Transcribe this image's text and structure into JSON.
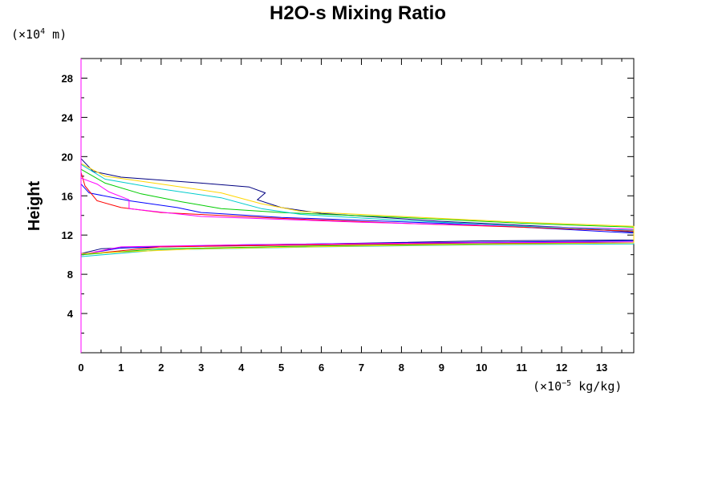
{
  "chart_data": {
    "type": "line",
    "title": "H2O-s Mixing Ratio",
    "xlabel": "",
    "ylabel": "Height",
    "x_unit": {
      "prefix": "(×10",
      "exp": "−5",
      "suffix": " kg/kg)"
    },
    "y_unit": {
      "prefix": "(×10",
      "exp": "4",
      "suffix": " m)"
    },
    "xlim": [
      0,
      13.8
    ],
    "ylim": [
      0,
      30
    ],
    "x_ticks": [
      0,
      1,
      2,
      3,
      4,
      5,
      6,
      7,
      8,
      9,
      10,
      11,
      12,
      13
    ],
    "x_tick_labels": [
      "0",
      "1",
      "2",
      "3",
      "4",
      "5",
      "6",
      "7",
      "8",
      "9",
      "10",
      "11",
      "12",
      "13"
    ],
    "y_ticks": [
      4,
      8,
      12,
      16,
      20,
      24,
      28
    ],
    "y_tick_labels": [
      "4",
      "8",
      "12",
      "16",
      "20",
      "24",
      "28"
    ],
    "series": [
      {
        "name": "navy",
        "color": "#000080",
        "points": [
          [
            0,
            10.1
          ],
          [
            0.5,
            10.6
          ],
          [
            2,
            10.8
          ],
          [
            6,
            11.1
          ],
          [
            10,
            11.4
          ],
          [
            13.8,
            11.5
          ],
          [
            13.8,
            12.3
          ],
          [
            12,
            12.8
          ],
          [
            9,
            13.4
          ],
          [
            6,
            14.2
          ],
          [
            5,
            14.8
          ],
          [
            4.4,
            15.6
          ],
          [
            4.6,
            16.3
          ],
          [
            4.2,
            16.9
          ],
          [
            3,
            17.3
          ],
          [
            1,
            17.9
          ],
          [
            0.3,
            18.5
          ],
          [
            0,
            19.8
          ]
        ]
      },
      {
        "name": "blue",
        "color": "#0000ff",
        "points": [
          [
            0,
            10.0
          ],
          [
            1,
            10.7
          ],
          [
            4,
            11.0
          ],
          [
            8,
            11.2
          ],
          [
            13.8,
            11.4
          ],
          [
            13.8,
            12.2
          ],
          [
            12,
            12.6
          ],
          [
            9,
            13.2
          ],
          [
            5,
            13.8
          ],
          [
            3,
            14.3
          ],
          [
            2.4,
            14.8
          ],
          [
            1.2,
            15.5
          ],
          [
            0.2,
            16.3
          ],
          [
            0,
            17.2
          ]
        ]
      },
      {
        "name": "red",
        "color": "#ff0000",
        "points": [
          [
            0,
            10.0
          ],
          [
            2,
            10.8
          ],
          [
            6,
            11.0
          ],
          [
            10,
            11.2
          ],
          [
            13.8,
            11.2
          ],
          [
            13.8,
            12.4
          ],
          [
            11,
            12.8
          ],
          [
            8,
            13.2
          ],
          [
            5,
            13.7
          ],
          [
            2,
            14.3
          ],
          [
            1,
            14.8
          ],
          [
            0.4,
            15.5
          ],
          [
            0.1,
            17.0
          ],
          [
            0,
            18.4
          ]
        ]
      },
      {
        "name": "magenta",
        "color": "#ff00ff",
        "points": [
          [
            0,
            10.0
          ],
          [
            1,
            10.8
          ],
          [
            4,
            11.0
          ],
          [
            9,
            11.2
          ],
          [
            13.8,
            11.3
          ],
          [
            13.8,
            12.6
          ],
          [
            11,
            12.9
          ],
          [
            7,
            13.3
          ],
          [
            3,
            13.9
          ],
          [
            1.2,
            14.7
          ],
          [
            1.2,
            15.6
          ],
          [
            0.7,
            16.4
          ],
          [
            0.4,
            17.2
          ],
          [
            0,
            17.8
          ]
        ]
      },
      {
        "name": "green",
        "color": "#00cc00",
        "points": [
          [
            0,
            10.0
          ],
          [
            2,
            10.6
          ],
          [
            6,
            10.9
          ],
          [
            10,
            11.1
          ],
          [
            13.8,
            11.2
          ],
          [
            13.8,
            12.8
          ],
          [
            11,
            13.2
          ],
          [
            8,
            13.8
          ],
          [
            5,
            14.3
          ],
          [
            3.5,
            14.7
          ],
          [
            2.5,
            15.4
          ],
          [
            1.5,
            16.2
          ],
          [
            0.6,
            17.3
          ],
          [
            0,
            18.7
          ]
        ]
      },
      {
        "name": "cyan",
        "color": "#00cccc",
        "points": [
          [
            0,
            9.8
          ],
          [
            2,
            10.5
          ],
          [
            6,
            10.8
          ],
          [
            10,
            11.0
          ],
          [
            13.8,
            11.1
          ],
          [
            13.8,
            12.5
          ],
          [
            11,
            12.9
          ],
          [
            8,
            13.5
          ],
          [
            5.5,
            14.1
          ],
          [
            4.5,
            14.7
          ],
          [
            3.5,
            15.8
          ],
          [
            2,
            16.7
          ],
          [
            0.6,
            17.7
          ],
          [
            0,
            19.2
          ]
        ]
      },
      {
        "name": "yellow",
        "color": "#ffd700",
        "points": [
          [
            0,
            10.1
          ],
          [
            3,
            10.6
          ],
          [
            7,
            10.9
          ],
          [
            11,
            11.1
          ],
          [
            13.8,
            11.2
          ],
          [
            13.8,
            12.9
          ],
          [
            11,
            13.3
          ],
          [
            8,
            13.9
          ],
          [
            5.5,
            14.4
          ],
          [
            4.5,
            15.2
          ],
          [
            3.5,
            16.3
          ],
          [
            2,
            17.2
          ],
          [
            0.6,
            18.0
          ],
          [
            0,
            19.3
          ]
        ]
      }
    ]
  }
}
